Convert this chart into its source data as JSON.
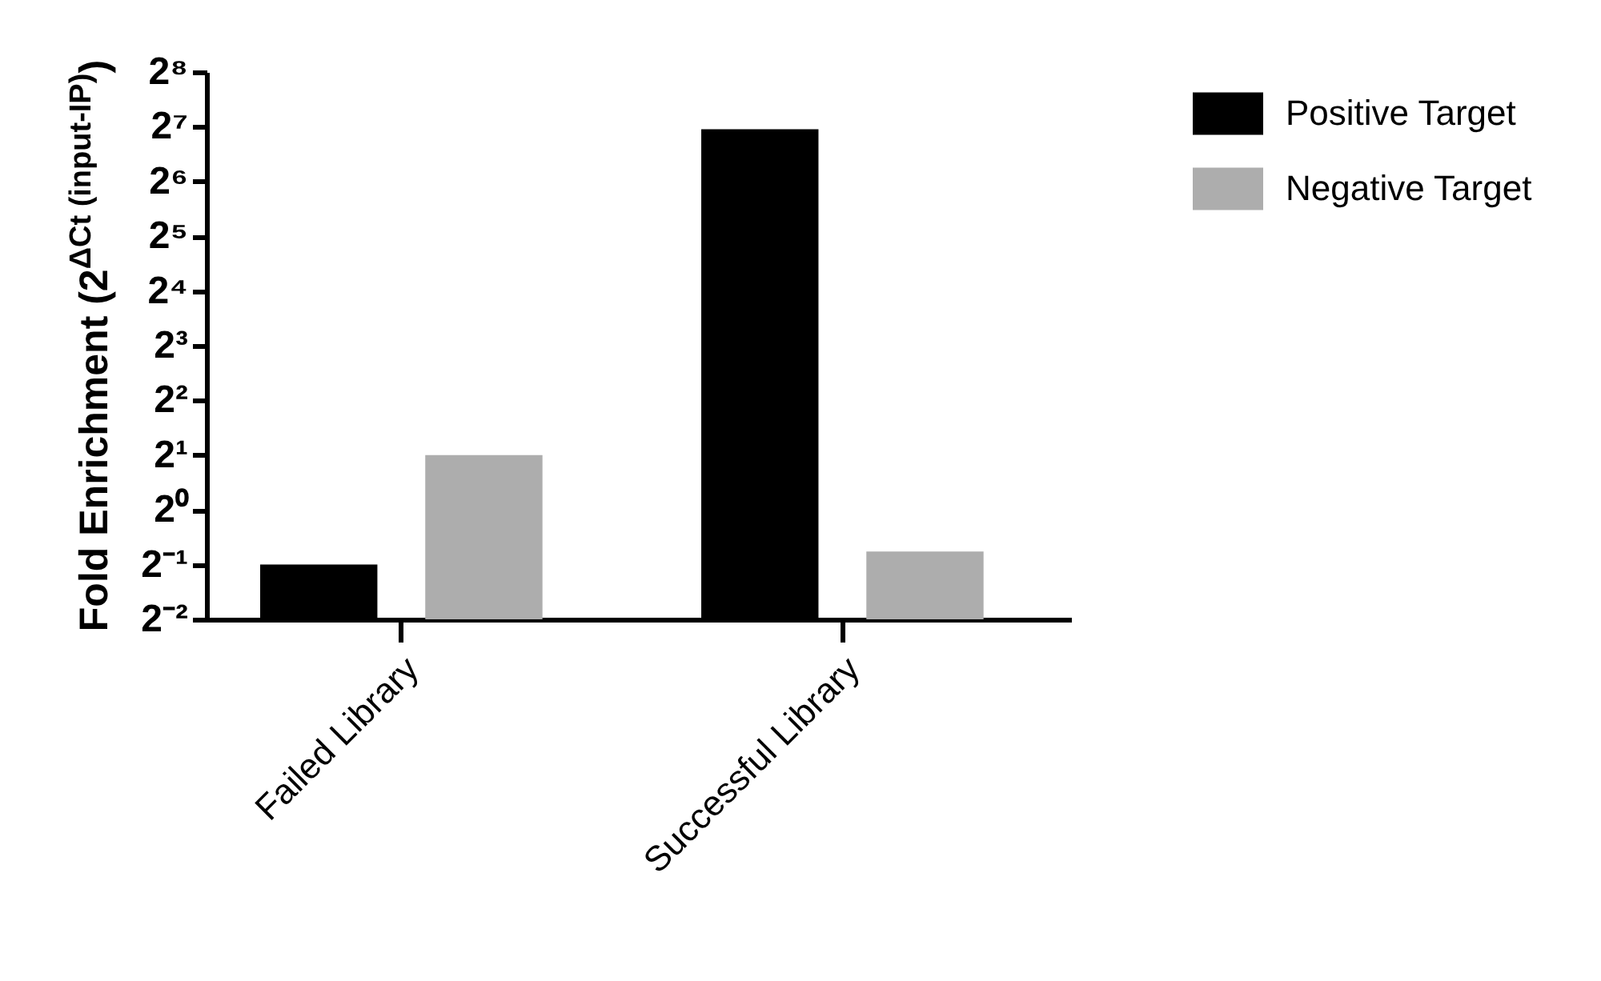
{
  "chart_data": {
    "type": "bar",
    "categories": [
      "Failed Library",
      "Successful Library"
    ],
    "series": [
      {
        "name": "Positive Target",
        "color": "#000000",
        "values": [
          0.5,
          124
        ]
      },
      {
        "name": "Negative Target",
        "color": "#adadad",
        "values": [
          2,
          0.59
        ]
      }
    ],
    "ylabel": "Fold Enrichment (2$^{ΔCt (input-IP)}$)",
    "log": "y",
    "ylim": [
      0.25,
      256
    ],
    "yticks": [
      {
        "value": 0.25,
        "label": "2⁻²"
      },
      {
        "value": 0.5,
        "label": "2⁻¹"
      },
      {
        "value": 1,
        "label": "2⁰"
      },
      {
        "value": 2,
        "label": "2¹"
      },
      {
        "value": 4,
        "label": "2²"
      },
      {
        "value": 8,
        "label": "2³"
      },
      {
        "value": 16,
        "label": "2⁴"
      },
      {
        "value": 32,
        "label": "2⁵"
      },
      {
        "value": 64,
        "label": "2⁶"
      },
      {
        "value": 128,
        "label": "2⁷"
      },
      {
        "value": 256,
        "label": "2⁸"
      }
    ],
    "grid": false,
    "legend": "top right"
  }
}
